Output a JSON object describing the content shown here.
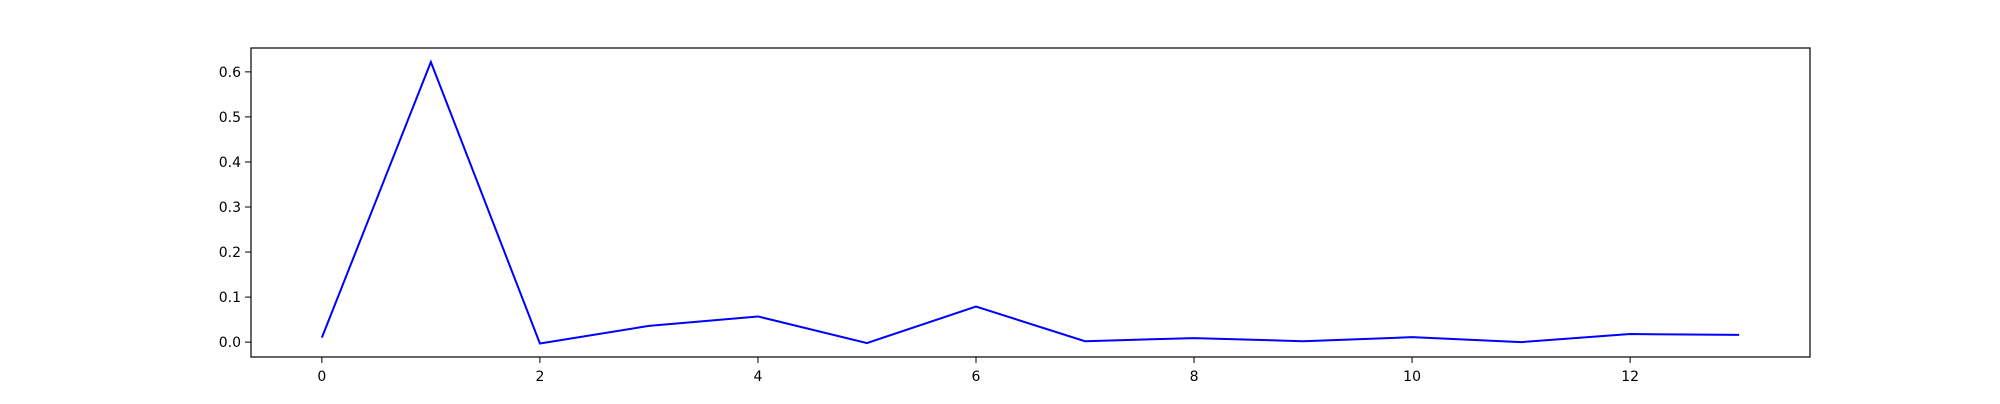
{
  "chart_data": {
    "type": "line",
    "title": "",
    "xlabel": "",
    "ylabel": "",
    "xlim": [
      -0.65,
      13.65
    ],
    "ylim": [
      -0.033,
      0.653
    ],
    "x_ticks": [
      0,
      2,
      4,
      6,
      8,
      10,
      12
    ],
    "y_ticks": [
      0.0,
      0.1,
      0.2,
      0.3,
      0.4,
      0.5,
      0.6
    ],
    "x_tick_labels": [
      "0",
      "2",
      "4",
      "6",
      "8",
      "10",
      "12"
    ],
    "y_tick_labels": [
      "0.0",
      "0.1",
      "0.2",
      "0.3",
      "0.4",
      "0.5",
      "0.6"
    ],
    "grid": false,
    "legend": "none",
    "series": [
      {
        "color": "#0000ff",
        "x": [
          0,
          1,
          2,
          3,
          4,
          5,
          6,
          7,
          8,
          9,
          10,
          11,
          12,
          13
        ],
        "values": [
          0.01,
          0.622,
          -0.003,
          0.036,
          0.057,
          -0.002,
          0.079,
          0.002,
          0.009,
          0.002,
          0.011,
          0.0,
          0.018,
          0.016
        ]
      }
    ]
  }
}
